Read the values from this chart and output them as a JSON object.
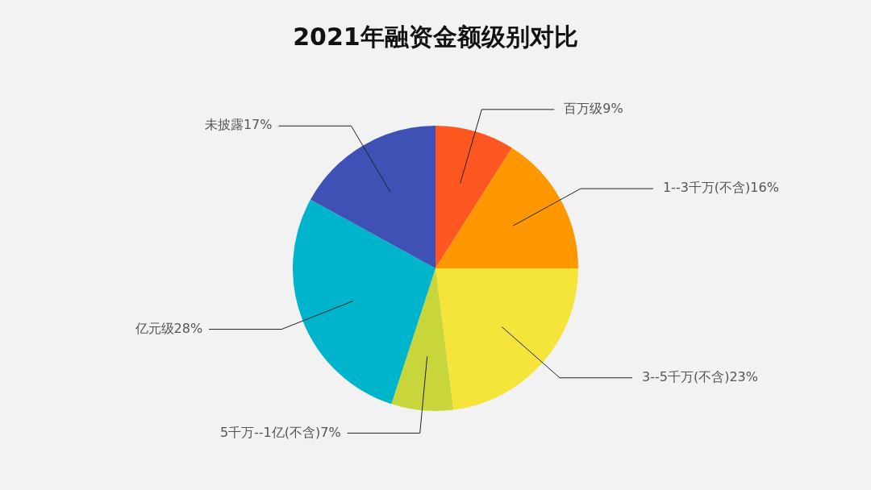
{
  "chart_data": {
    "type": "pie",
    "title": "2021年融资金额级别对比",
    "categories": [
      "百万级",
      "1--3千万(不含)",
      "3--5千万(不含)",
      "5千万--1亿(不含)",
      "亿元级",
      "未披露"
    ],
    "values": [
      9,
      16,
      23,
      7,
      28,
      17
    ],
    "value_labels": [
      "9%",
      "16%",
      "23%",
      "7%",
      "28%",
      "17%"
    ],
    "colors": [
      "#ff5722",
      "#ff9800",
      "#f5e43a",
      "#c9d63b",
      "#00b4cc",
      "#3f51b5"
    ],
    "legend": false
  }
}
